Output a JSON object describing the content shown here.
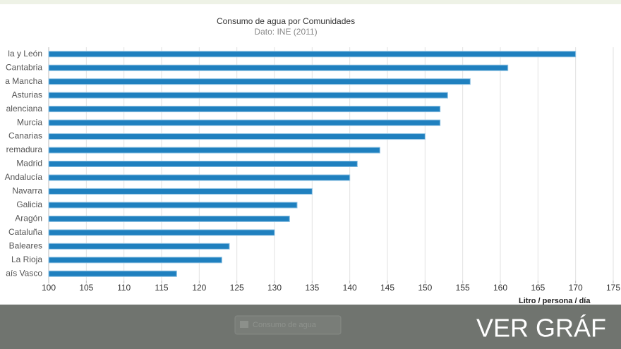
{
  "chart_data": {
    "type": "bar",
    "orientation": "horizontal",
    "title": "Consumo de agua por Comunidades",
    "subtitle": "Dato: INE (2011)",
    "x_label": "Litro / persona / día",
    "categories": [
      "la y León",
      "Cantabria",
      "a Mancha",
      "Asturias",
      "alenciana",
      "Murcia",
      "Canarias",
      "remadura",
      "Madrid",
      "Andalucía",
      "Navarra",
      "Galicia",
      "Aragón",
      "Cataluña",
      "Baleares",
      "La Rioja",
      "aís Vasco"
    ],
    "values": [
      170,
      161,
      156,
      153,
      152,
      152,
      150,
      144,
      141,
      140,
      135,
      133,
      132,
      130,
      124,
      123,
      117
    ],
    "color": "#1f80bf",
    "xlim": [
      100,
      175
    ],
    "xticks": [
      100,
      105,
      110,
      115,
      120,
      125,
      130,
      135,
      140,
      145,
      150,
      155,
      160,
      165,
      170,
      175
    ],
    "grid": true
  },
  "footer": {
    "button": "Consumo de agua",
    "link": "VER GRÁF"
  }
}
